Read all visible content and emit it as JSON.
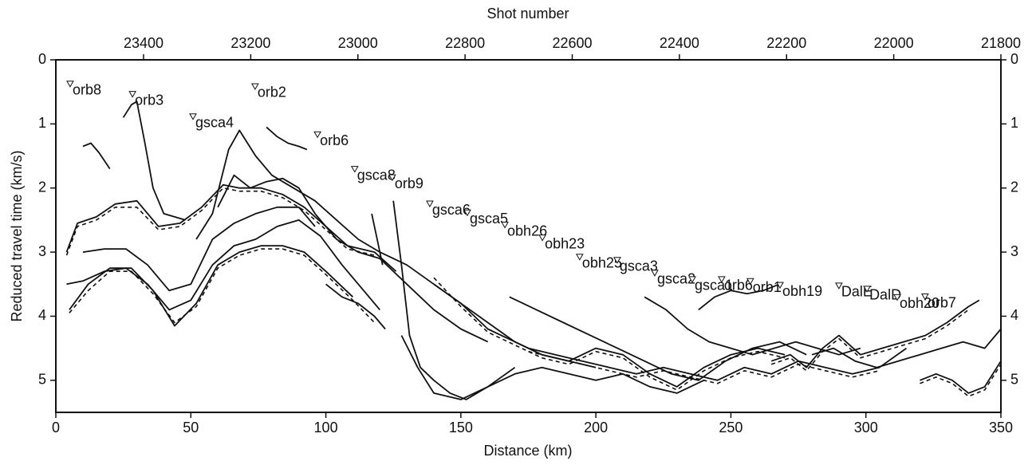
{
  "chart_data": {
    "type": "line",
    "x_label": "Distance (km)",
    "y_label": "Reduced travel time (km/s)",
    "xlim": [
      0,
      350
    ],
    "xticks": [
      0,
      50,
      100,
      150,
      200,
      250,
      300,
      350
    ],
    "ylim": [
      0,
      5.5
    ],
    "yticks": [
      0,
      1,
      2,
      3,
      4,
      5
    ],
    "y_inverted": true,
    "y2lim": [
      0,
      5.5
    ],
    "y2ticks": [
      0,
      1,
      2,
      3,
      4,
      5
    ],
    "top_axis": {
      "label": "Shot number",
      "lim": [
        23563.7,
        21800
      ],
      "ticks": [
        23400,
        23200,
        23000,
        22800,
        22600,
        22400,
        22200,
        22000,
        21800
      ]
    },
    "color": "#111111",
    "series": [
      {
        "style": "solid",
        "x": [
          10,
          13,
          16,
          20
        ],
        "values": [
          1.35,
          1.3,
          1.45,
          1.7
        ]
      },
      {
        "style": "solid",
        "x": [
          25,
          28,
          30,
          33,
          36,
          40,
          44,
          48
        ],
        "values": [
          0.9,
          0.7,
          0.65,
          1.3,
          2.0,
          2.4,
          2.45,
          2.5
        ]
      },
      {
        "style": "solid",
        "x": [
          4,
          8,
          15,
          22,
          30,
          38,
          46,
          54,
          62,
          68,
          76,
          84,
          92,
          100,
          108,
          118,
          126
        ],
        "values": [
          3.0,
          2.55,
          2.45,
          2.25,
          2.2,
          2.6,
          2.55,
          2.3,
          1.95,
          2.0,
          2.0,
          2.1,
          2.3,
          2.6,
          2.9,
          3.0,
          3.3
        ]
      },
      {
        "style": "solid",
        "x": [
          4,
          10,
          18,
          26,
          34,
          42,
          50,
          58,
          66,
          74,
          82,
          90,
          98,
          106,
          114,
          120
        ],
        "values": [
          3.5,
          3.45,
          3.3,
          3.25,
          3.5,
          3.9,
          3.75,
          3.2,
          2.9,
          2.8,
          2.6,
          2.5,
          2.75,
          3.2,
          3.6,
          3.9
        ]
      },
      {
        "style": "solid",
        "x": [
          5,
          12,
          20,
          28,
          36,
          44,
          52,
          60,
          68,
          76,
          84,
          92,
          100,
          110
        ],
        "values": [
          3.9,
          3.5,
          3.25,
          3.25,
          3.6,
          4.15,
          3.8,
          3.2,
          3.0,
          2.9,
          2.9,
          3.0,
          3.3,
          3.7
        ]
      },
      {
        "style": "solid",
        "x": [
          10,
          18,
          26,
          34,
          42,
          50,
          58,
          66,
          74,
          82,
          90,
          96
        ],
        "values": [
          3.0,
          2.95,
          2.95,
          3.2,
          3.6,
          3.5,
          2.8,
          2.55,
          2.4,
          2.3,
          2.3,
          2.6
        ]
      },
      {
        "style": "solid",
        "x": [
          60,
          66,
          72,
          78,
          84,
          90,
          96,
          104,
          112,
          120,
          130,
          140,
          150,
          160
        ],
        "values": [
          2.3,
          1.8,
          2.0,
          1.9,
          1.85,
          2.0,
          2.4,
          2.8,
          3.0,
          3.1,
          3.5,
          3.9,
          4.2,
          4.4
        ]
      },
      {
        "style": "solid",
        "x": [
          78,
          82,
          86,
          90,
          93
        ],
        "values": [
          1.05,
          1.2,
          1.3,
          1.35,
          1.4
        ]
      },
      {
        "style": "solid",
        "x": [
          52,
          58,
          64,
          68,
          74,
          80,
          88,
          96,
          104,
          112,
          120,
          130,
          140,
          150,
          160,
          170,
          180,
          190,
          200
        ],
        "values": [
          2.8,
          2.4,
          1.4,
          1.1,
          1.5,
          1.8,
          2.0,
          2.2,
          2.5,
          2.8,
          3.0,
          3.2,
          3.5,
          3.8,
          4.1,
          4.4,
          4.6,
          4.7,
          4.8
        ]
      },
      {
        "style": "solid",
        "x": [
          125,
          128,
          131,
          135,
          140,
          146,
          152,
          160,
          170
        ],
        "values": [
          2.2,
          3.2,
          4.3,
          4.8,
          5.0,
          5.2,
          5.3,
          5.1,
          4.8
        ]
      },
      {
        "style": "solid",
        "x": [
          128,
          134,
          140,
          150,
          160,
          170,
          180,
          190,
          200,
          210,
          220,
          230,
          240
        ],
        "values": [
          4.3,
          4.8,
          5.2,
          5.3,
          5.1,
          4.9,
          4.8,
          4.9,
          5.0,
          4.9,
          5.1,
          5.2,
          5.0
        ]
      },
      {
        "style": "solid",
        "x": [
          140,
          150,
          160,
          170,
          180,
          190,
          200,
          210,
          220,
          230,
          240,
          250,
          260,
          270
        ],
        "values": [
          3.5,
          3.8,
          4.2,
          4.4,
          4.6,
          4.7,
          4.5,
          4.6,
          4.9,
          5.1,
          4.8,
          4.6,
          4.5,
          4.6
        ]
      },
      {
        "style": "solid",
        "x": [
          168,
          178,
          188,
          198,
          208,
          218,
          228,
          238,
          248,
          258,
          268,
          278
        ],
        "values": [
          3.7,
          3.9,
          4.1,
          4.3,
          4.5,
          4.7,
          4.9,
          5.0,
          4.7,
          4.5,
          4.4,
          4.6
        ]
      },
      {
        "style": "solid",
        "x": [
          218,
          226,
          234,
          242,
          250,
          258,
          266,
          274,
          282,
          290,
          298
        ],
        "values": [
          3.7,
          3.9,
          4.2,
          4.4,
          4.5,
          4.6,
          4.5,
          4.4,
          4.5,
          4.6,
          4.5
        ]
      },
      {
        "style": "solid",
        "x": [
          238,
          244,
          250,
          256,
          262,
          268
        ],
        "values": [
          3.9,
          3.7,
          3.6,
          3.65,
          3.6,
          3.5
        ]
      },
      {
        "style": "solid",
        "x": [
          265,
          272,
          278,
          284,
          290,
          298,
          306,
          314,
          322,
          330,
          338,
          342
        ],
        "values": [
          4.7,
          4.6,
          4.8,
          4.5,
          4.3,
          4.6,
          4.5,
          4.4,
          4.3,
          4.1,
          3.85,
          3.75
        ]
      },
      {
        "style": "solid",
        "x": [
          280,
          288,
          296,
          304,
          312,
          320,
          328,
          336,
          344,
          350
        ],
        "values": [
          4.6,
          4.5,
          4.7,
          4.8,
          4.7,
          4.6,
          4.5,
          4.4,
          4.5,
          4.2
        ]
      },
      {
        "style": "solid",
        "x": [
          320,
          326,
          332,
          338,
          344,
          350
        ],
        "values": [
          5.0,
          4.9,
          5.0,
          5.2,
          5.1,
          4.7
        ]
      },
      {
        "style": "solid",
        "x": [
          175,
          185,
          195,
          205,
          215,
          225,
          235,
          245,
          255,
          265,
          275,
          285,
          295,
          305,
          315
        ],
        "values": [
          4.5,
          4.6,
          4.7,
          4.8,
          4.9,
          4.8,
          4.9,
          5.0,
          4.8,
          4.9,
          4.7,
          4.8,
          4.9,
          4.8,
          4.5
        ]
      },
      {
        "style": "solid",
        "x": [
          100,
          106,
          112,
          118,
          122
        ],
        "values": [
          3.5,
          3.7,
          3.8,
          4.0,
          4.2
        ]
      },
      {
        "style": "solid",
        "x": [
          117,
          119,
          121
        ],
        "values": [
          2.4,
          2.8,
          3.2
        ]
      },
      {
        "style": "dashed",
        "x": [
          4,
          8,
          15,
          22,
          30,
          38,
          46,
          54,
          62,
          68,
          76,
          84,
          92,
          100,
          108,
          118
        ],
        "values": [
          3.05,
          2.6,
          2.5,
          2.3,
          2.3,
          2.65,
          2.6,
          2.35,
          2.0,
          2.05,
          2.05,
          2.15,
          2.35,
          2.65,
          2.95,
          3.05
        ]
      },
      {
        "style": "dashed",
        "x": [
          5,
          12,
          20,
          28,
          36,
          44,
          52,
          60,
          68,
          76,
          84,
          92,
          100,
          110,
          118
        ],
        "values": [
          3.95,
          3.6,
          3.3,
          3.3,
          3.65,
          4.1,
          3.85,
          3.25,
          3.05,
          2.95,
          2.95,
          3.05,
          3.35,
          3.75,
          4.1
        ]
      },
      {
        "style": "dashed",
        "x": [
          140,
          150,
          160,
          170,
          180,
          190,
          200,
          210,
          220,
          230,
          240,
          250,
          260,
          270
        ],
        "values": [
          3.4,
          3.85,
          4.25,
          4.45,
          4.65,
          4.75,
          4.55,
          4.65,
          4.95,
          5.15,
          4.85,
          4.65,
          4.55,
          4.65
        ]
      },
      {
        "style": "dashed",
        "x": [
          265,
          272,
          278,
          284,
          290,
          298,
          306,
          314,
          322,
          330,
          338
        ],
        "values": [
          4.75,
          4.65,
          4.85,
          4.55,
          4.35,
          4.65,
          4.55,
          4.45,
          4.35,
          4.15,
          3.9
        ]
      },
      {
        "style": "dashed",
        "x": [
          175,
          185,
          195,
          205,
          215,
          225,
          235,
          245,
          255,
          265,
          275,
          285,
          295,
          305
        ],
        "values": [
          4.55,
          4.65,
          4.75,
          4.85,
          4.95,
          4.85,
          4.95,
          5.05,
          4.85,
          4.95,
          4.75,
          4.85,
          4.95,
          4.85
        ]
      },
      {
        "style": "dashed",
        "x": [
          320,
          326,
          332,
          338,
          344,
          350
        ],
        "values": [
          5.05,
          4.95,
          5.05,
          5.25,
          5.15,
          4.75
        ]
      }
    ],
    "annotations": [
      {
        "text": "orb8",
        "x": 5.3,
        "y": 0.37
      },
      {
        "text": "orb3",
        "x": 28.4,
        "y": 0.53
      },
      {
        "text": "gsca4",
        "x": 50.8,
        "y": 0.88
      },
      {
        "text": "orb2",
        "x": 73.8,
        "y": 0.41
      },
      {
        "text": "orb6",
        "x": 96.9,
        "y": 1.16
      },
      {
        "text": "gsca8",
        "x": 110.7,
        "y": 1.7
      },
      {
        "text": "orb9",
        "x": 124.6,
        "y": 1.83
      },
      {
        "text": "gsca6",
        "x": 138.5,
        "y": 2.24
      },
      {
        "text": "gsca5",
        "x": 152.4,
        "y": 2.38
      },
      {
        "text": "obh26",
        "x": 166.3,
        "y": 2.57
      },
      {
        "text": "obh23",
        "x": 180.2,
        "y": 2.77
      },
      {
        "text": "obh25",
        "x": 194.0,
        "y": 3.07
      },
      {
        "text": "gsca3",
        "x": 207.9,
        "y": 3.12
      },
      {
        "text": "gsca2",
        "x": 221.8,
        "y": 3.32
      },
      {
        "text": "gsca1",
        "x": 235.7,
        "y": 3.42
      },
      {
        "text": "orb6",
        "x": 246.6,
        "y": 3.42
      },
      {
        "text": "orb1",
        "x": 257.2,
        "y": 3.45
      },
      {
        "text": "obh19",
        "x": 268.2,
        "y": 3.51
      },
      {
        "text": "DalE",
        "x": 290.0,
        "y": 3.52
      },
      {
        "text": "DalD",
        "x": 300.4,
        "y": 3.57
      },
      {
        "text": "obh20",
        "x": 311.6,
        "y": 3.7
      },
      {
        "text": "orb7",
        "x": 321.9,
        "y": 3.69
      }
    ]
  }
}
